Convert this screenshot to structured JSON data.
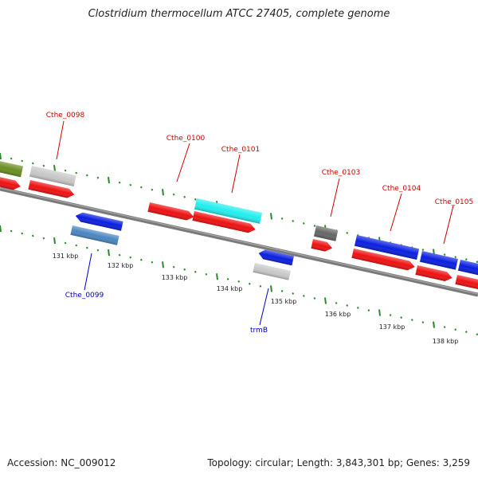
{
  "title": "Clostridium thermocellum ATCC 27405, complete genome",
  "footer": {
    "accession": "Accession: NC_009012",
    "summary": "Topology: circular; Length: 3,843,301 bp; Genes: 3,259"
  },
  "colors": {
    "backbone": "#777777",
    "ticks": "#2a8a2a",
    "forward_label": "#cc0000",
    "reverse_label": "#0000bb",
    "cds_red": "#ee1111",
    "cds_blue": "#0a1fe0",
    "cds_cyan": "#22eeee",
    "cds_grey": "#c8c8c8",
    "cds_darkgrey": "#666666",
    "cds_steelblue": "#4a86c0",
    "cds_olive": "#6b8e23"
  },
  "kbp_labels": [
    "131 kbp",
    "132 kbp",
    "133 kbp",
    "134 kbp",
    "135 kbp",
    "136 kbp",
    "137 kbp",
    "138 kbp"
  ],
  "gene_labels": {
    "forward": [
      "Cthe_0098",
      "Cthe_0100",
      "Cthe_0101",
      "Cthe_0103",
      "Cthe_0104",
      "Cthe_0105"
    ],
    "reverse": [
      "Cthe_0099",
      "trmB"
    ]
  }
}
